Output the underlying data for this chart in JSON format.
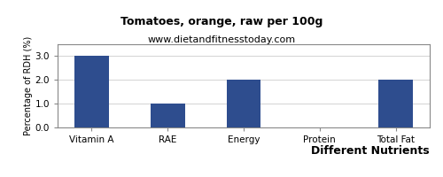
{
  "title": "Tomatoes, orange, raw per 100g",
  "subtitle": "www.dietandfitnesstoday.com",
  "xlabel": "Different Nutrients",
  "ylabel": "Percentage of RDH (%)",
  "categories": [
    "Vitamin A",
    "RAE",
    "Energy",
    "Protein",
    "Total Fat"
  ],
  "values": [
    3.0,
    1.0,
    2.0,
    0.0,
    2.0
  ],
  "bar_color": "#2e4d8e",
  "ylim": [
    0,
    3.5
  ],
  "yticks": [
    0.0,
    1.0,
    2.0,
    3.0
  ],
  "background_color": "#ffffff",
  "title_fontsize": 9,
  "subtitle_fontsize": 8,
  "xlabel_fontsize": 9,
  "ylabel_fontsize": 7,
  "tick_fontsize": 7.5,
  "bar_width": 0.45
}
